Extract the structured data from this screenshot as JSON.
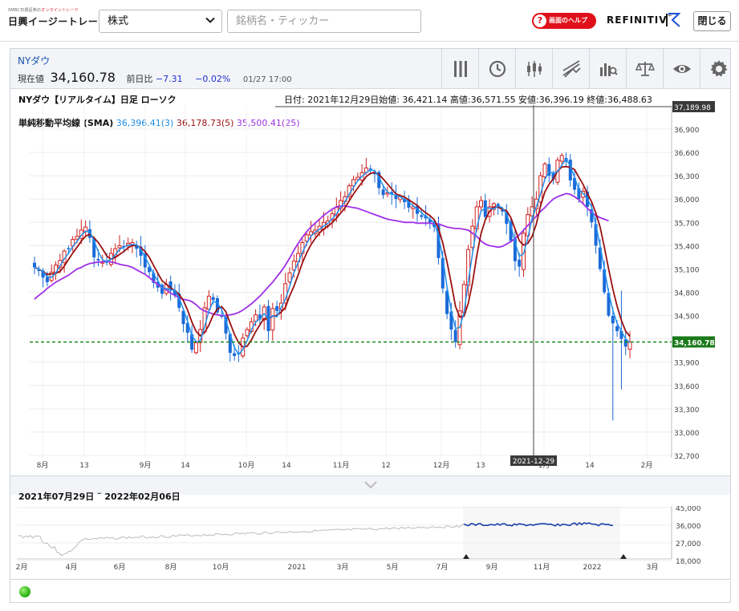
{
  "topbar": {
    "logo_small": "SMBC日興証券の",
    "logo_small_accent": "オンライントレード",
    "logo_main": "日興イージートレード",
    "category_value": "株式",
    "search_placeholder": "銘柄名・ティッカー",
    "help_label": "画面のヘルプ",
    "help_icon": "?",
    "refinitiv": "REFINITIV",
    "refinitiv_sup": "™",
    "close_label": "閉じる"
  },
  "quote": {
    "symbol": "NYダウ",
    "current_label": "現在値",
    "current_value": "34,160.78",
    "change_label": "前日比",
    "change_value": "−7.31",
    "change_pct": "−0.02%",
    "datetime": "01/27 17:00"
  },
  "toolbar": {
    "icons": [
      "chart-type-icon",
      "clock-icon",
      "candlestick-icon",
      "trendline-icon",
      "analysis-search-icon",
      "balance-icon",
      "eye-icon",
      "gear-icon"
    ]
  },
  "chart": {
    "title": "NYダウ【リアルタイム】日足 ローソク",
    "ohlc": "日付: 2021年12月29日始値: 36,421.14 高値:36,571.55 安値:36,396.19 終値:36,488.63",
    "sma_title": "単純移動平均線 (SMA)",
    "sma3": "36,396.41(3)",
    "sma5": "36,178.73(5)",
    "sma25": "35,500.41(25)",
    "crosshair_value": "37,189.98",
    "crosshair_date": "2021-12-29",
    "last_price_label": "34,160.78"
  },
  "chart_data": {
    "type": "candlestick",
    "title": "NYダウ【リアルタイム】日足 ローソク",
    "y_ticks": [
      "36,900",
      "36,600",
      "36,300",
      "36,000",
      "35,700",
      "35,400",
      "35,100",
      "34,800",
      "34,500",
      "34,200",
      "33,900",
      "33,600",
      "33,300",
      "33,000",
      "32,700"
    ],
    "x_ticks": [
      "8月",
      "13",
      "9月",
      "14",
      "10月",
      "14",
      "11月",
      "12",
      "12月",
      "13",
      "1月",
      "14",
      "2月"
    ],
    "ylim": [
      32700,
      37190
    ],
    "last_price": 34160.78,
    "colors": {
      "up": "#d02020",
      "down": "#1a6ad8",
      "sma3": "#2090f0",
      "sma5": "#9a1010",
      "sma25": "#a030e8",
      "last_line": "#1a8a1a"
    },
    "closes": [
      35120,
      35080,
      34990,
      34930,
      35060,
      35150,
      35210,
      35330,
      35360,
      35480,
      35520,
      35600,
      35640,
      35500,
      35250,
      35210,
      35190,
      35180,
      35300,
      35360,
      35400,
      35380,
      35430,
      35440,
      35360,
      35270,
      35120,
      35060,
      34920,
      34860,
      34780,
      34900,
      34820,
      34760,
      34600,
      34390,
      34280,
      34060,
      34150,
      34320,
      34600,
      34750,
      34700,
      34540,
      34490,
      34270,
      34020,
      33980,
      34000,
      34210,
      34320,
      34420,
      34510,
      34450,
      34610,
      34300,
      34590,
      34560,
      34660,
      34910,
      35050,
      35200,
      35300,
      35440,
      35540,
      35580,
      35600,
      35650,
      35700,
      35720,
      35810,
      35890,
      35980,
      36030,
      36170,
      36250,
      36280,
      36340,
      36400,
      36380,
      36320,
      36140,
      36050,
      36080,
      36060,
      36000,
      36030,
      35960,
      35890,
      35900,
      35810,
      35770,
      35750,
      35700,
      35640,
      35240,
      34850,
      34520,
      34320,
      34160,
      34560,
      34900,
      35350,
      35650,
      35900,
      35980,
      35770,
      35900,
      35940,
      35890,
      35840,
      35680,
      35460,
      35200,
      35130,
      35560,
      35800,
      35900,
      36000,
      36300,
      36450,
      36300,
      36250,
      36500,
      36560,
      36480,
      36240,
      36120,
      36000,
      36100,
      35900,
      35700,
      35400,
      35100,
      34800,
      34500,
      34400,
      34300,
      34200,
      34100,
      34160
    ],
    "sma25": [
      34710,
      34760,
      34800,
      34850,
      34890,
      34930,
      34960,
      34990,
      35020,
      35060,
      35100,
      35120,
      35150,
      35170,
      35180,
      35190,
      35190,
      35200,
      35190,
      35180,
      35160,
      35150,
      35140,
      35120,
      35090,
      35060,
      35030,
      34990,
      34940,
      34900,
      34860,
      34830,
      34790,
      34760,
      34730,
      34710,
      34700,
      34680,
      34640,
      34590,
      34560,
      34540,
      34520,
      34510,
      34500,
      34500,
      34510,
      34520,
      34540,
      34570,
      34610,
      34650,
      34700,
      34750,
      34810,
      34870,
      34930,
      35000,
      35070,
      35150,
      35240,
      35340,
      35430,
      35510,
      35580,
      35640,
      35690,
      35740,
      35790,
      35830,
      35870,
      35900,
      35910,
      35910,
      35900,
      35890,
      35880,
      35860,
      35840,
      35820,
      35800,
      35780,
      35760,
      35740,
      35730,
      35720,
      35710,
      35700,
      35700,
      35700,
      35690,
      35690,
      35690,
      35690,
      35680,
      35680,
      35660,
      35640,
      35630,
      35620,
      35620,
      35610,
      35600,
      35560,
      35520,
      35460,
      35420,
      35400,
      35390,
      35380,
      35390,
      35420,
      35450,
      35490,
      35540,
      35600,
      35660,
      35720,
      35780,
      35840,
      35890,
      35950,
      36000,
      36030,
      36050,
      36070,
      36060,
      36030,
      35990,
      35940,
      35880,
      35830,
      35790,
      35760,
      35740,
      35720
    ]
  },
  "navigator": {
    "range": "2021年07月29日 ˜ 2022年02月06日",
    "y_ticks": [
      "45,000",
      "36,000",
      "27,000",
      "18,000"
    ],
    "x_ticks": [
      "2月",
      "4月",
      "6月",
      "8月",
      "10月",
      "2021",
      "3月",
      "5月",
      "7月",
      "9月",
      "11月",
      "2022",
      "3月"
    ],
    "colors": {
      "history": "#bbbbbb",
      "selected": "#1a3fa8"
    }
  }
}
